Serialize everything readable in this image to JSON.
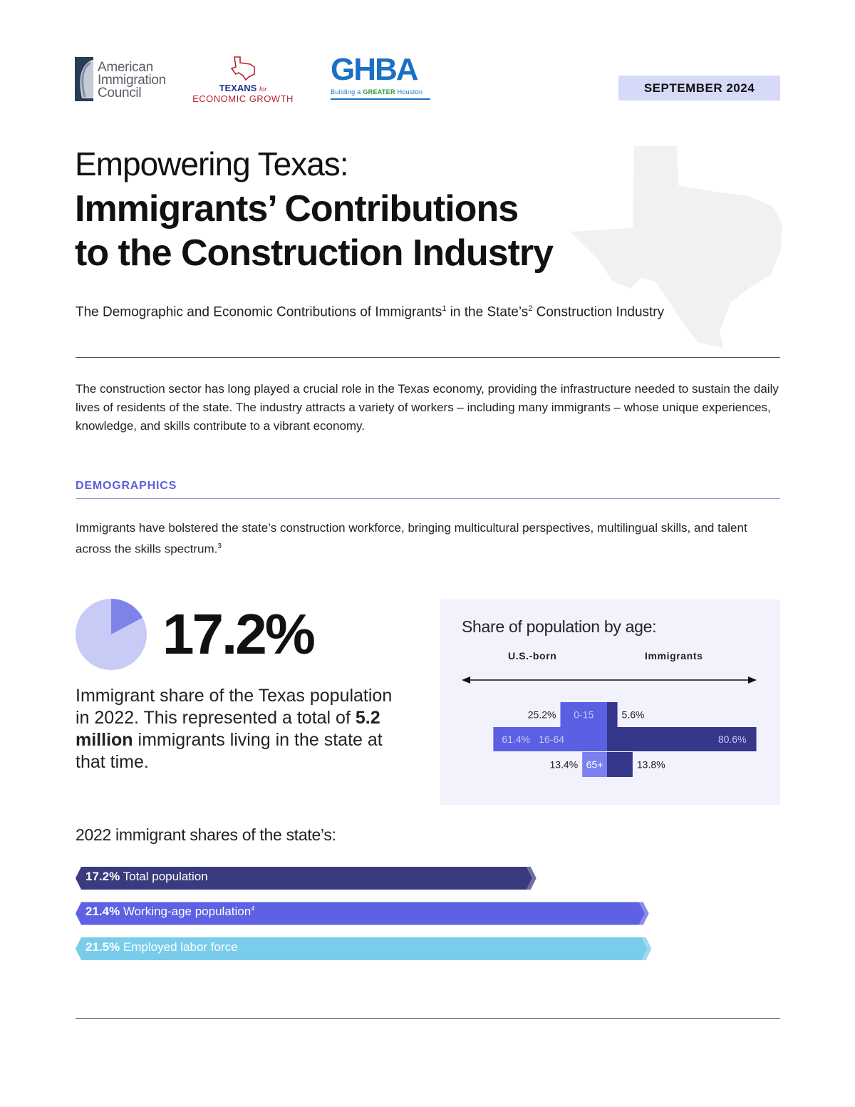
{
  "header": {
    "logo_aic": [
      "American",
      "Immigration",
      "Council"
    ],
    "logo_teg": {
      "line1": "TEXANS",
      "for": "for",
      "line2": "ECONOMIC GROWTH"
    },
    "logo_ghba": {
      "word": "GHBA",
      "tagline_pre": "Building a ",
      "tagline_bold": "GREATER",
      "tagline_post": " Houston"
    },
    "date": "SEPTEMBER 2024"
  },
  "title": {
    "line1": "Empowering Texas:",
    "line2": "Immigrants’ Contributions",
    "line3": "to the Construction Industry"
  },
  "subtitle": {
    "part1": "The Demographic and Economic Contributions of Immigrants",
    "sup1": "1",
    "part2": " in the State’s",
    "sup2": "2",
    "part3": " Construction Industry"
  },
  "intro": "The construction sector has long played a crucial role in the Texas economy, providing the infrastructure needed to sustain the daily lives of residents of the state.  The industry attracts a variety of workers – including many immigrants – whose unique experiences, knowledge, and skills contribute to a vibrant economy.",
  "demographics": {
    "heading": "DEMOGRAPHICS",
    "body": "Immigrants have bolstered the state’s construction workforce, bringing multicultural perspectives, multilingual skills, and talent across the skills spectrum.",
    "body_sup": "3"
  },
  "stat": {
    "value": "17.2%",
    "fraction": 0.172,
    "desc_pre": "Immigrant share of the Texas population in 2022. This represented a total of ",
    "desc_bold": "5.2 million",
    "desc_post": " immigrants living in the state at that time."
  },
  "age_chart": {
    "title": "Share of population by age:",
    "left_label": "U.S.-born",
    "right_label": "Immigrants",
    "colors": {
      "usborn_main": "#5b5fe3",
      "usborn_light": "#7b7ff0",
      "immigrant": "#34378a",
      "light_label": "#c9cbf7"
    }
  },
  "shares": {
    "title": "2022 immigrant shares of the state’s:",
    "bars": [
      {
        "pct": "17.2%",
        "label": "Total population",
        "sup": "",
        "color": "#393b7e"
      },
      {
        "pct": "21.4%",
        "label": "Working-age population",
        "sup": "4",
        "color": "#5e61e3"
      },
      {
        "pct": "21.5%",
        "label": "Employed labor force",
        "sup": "",
        "color": "#79cdeb"
      }
    ]
  },
  "chart_data": {
    "type": "bar",
    "title": "Share of population by age:",
    "categories": [
      "0-15",
      "16-64",
      "65+"
    ],
    "series": [
      {
        "name": "U.S.-born",
        "values": [
          25.2,
          61.4,
          13.4
        ]
      },
      {
        "name": "Immigrants",
        "values": [
          5.6,
          80.6,
          13.8
        ]
      }
    ],
    "value_labels": {
      "U.S.-born": [
        "25.2%",
        "61.4%",
        "13.4%"
      ],
      "Immigrants": [
        "5.6%",
        "80.6%",
        "13.8%"
      ]
    },
    "orientation": "horizontal-diverging",
    "grid": false
  }
}
